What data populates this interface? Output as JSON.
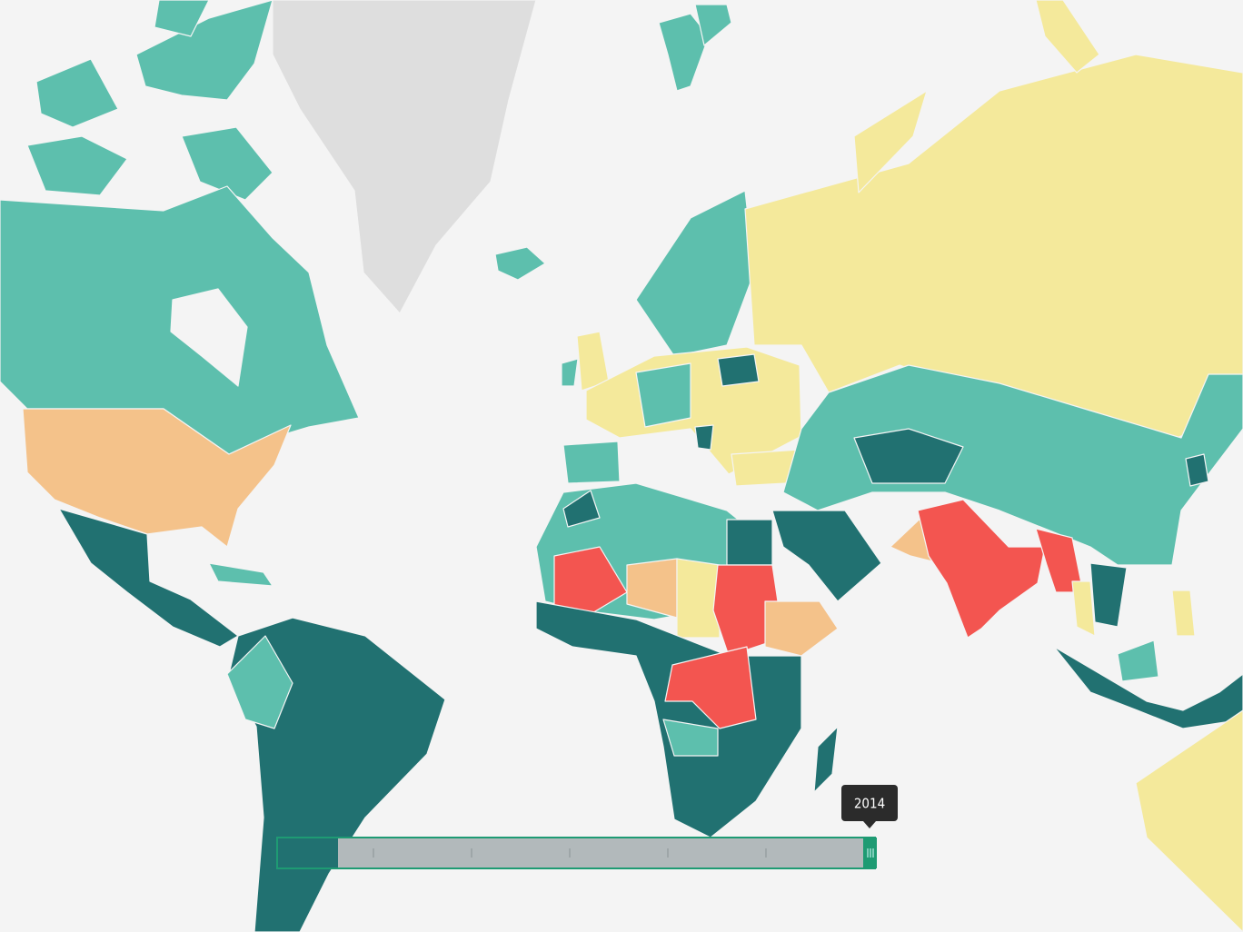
{
  "slider": {
    "label": "2014"
  }
}
